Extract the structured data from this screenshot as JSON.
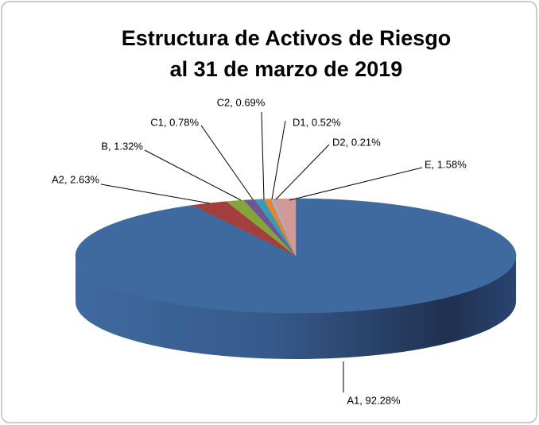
{
  "chart_data": {
    "type": "pie",
    "title": [
      "Estructura de Activos de Riesgo",
      "al 31 de marzo de 2019"
    ],
    "values": [
      92.28,
      2.63,
      1.32,
      0.78,
      0.69,
      0.52,
      0.21,
      1.58
    ],
    "value_labels": [
      "A1, 92.28%",
      "A2, 2.63%",
      "B, 1.32%",
      "C1, 0.78%",
      "C2, 0.69%",
      "D1, 0.52%",
      "D2, 0.21%",
      "E, 1.58%"
    ],
    "colors": [
      "#3f6aa0",
      "#a33f3d",
      "#86a43b",
      "#6f5496",
      "#3a99b3",
      "#e8852c",
      "#98b2d8",
      "#d19a97"
    ]
  }
}
